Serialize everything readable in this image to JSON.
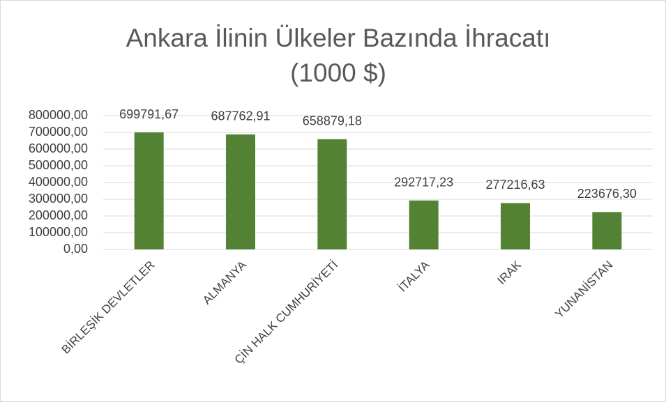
{
  "chart_data": {
    "type": "bar",
    "title": "Ankara İlinin Ülkeler Bazında İhracatı (1000 $)",
    "categories": [
      "BİRLEŞİK DEVLETLER",
      "ALMANYA",
      "ÇİN HALK CUMHURİYETİ",
      "İTALYA",
      "IRAK",
      "YUNANİSTAN"
    ],
    "values": [
      699791.67,
      687762.91,
      658879.18,
      292717.23,
      277216.63,
      223676.3
    ],
    "value_labels": [
      "699791,67",
      "687762,91",
      "658879,18",
      "292717,23",
      "277216,63",
      "223676,30"
    ],
    "color": "#548235",
    "ylim": [
      0,
      800000
    ],
    "yticks": [
      {
        "value": 0,
        "label": "0,00"
      },
      {
        "value": 100000,
        "label": "100000,00"
      },
      {
        "value": 200000,
        "label": "200000,00"
      },
      {
        "value": 300000,
        "label": "300000,00"
      },
      {
        "value": 400000,
        "label": "400000,00"
      },
      {
        "value": 500000,
        "label": "500000,00"
      },
      {
        "value": 600000,
        "label": "600000,00"
      },
      {
        "value": 700000,
        "label": "700000,00"
      },
      {
        "value": 800000,
        "label": "800000,00"
      }
    ],
    "grid": true
  }
}
